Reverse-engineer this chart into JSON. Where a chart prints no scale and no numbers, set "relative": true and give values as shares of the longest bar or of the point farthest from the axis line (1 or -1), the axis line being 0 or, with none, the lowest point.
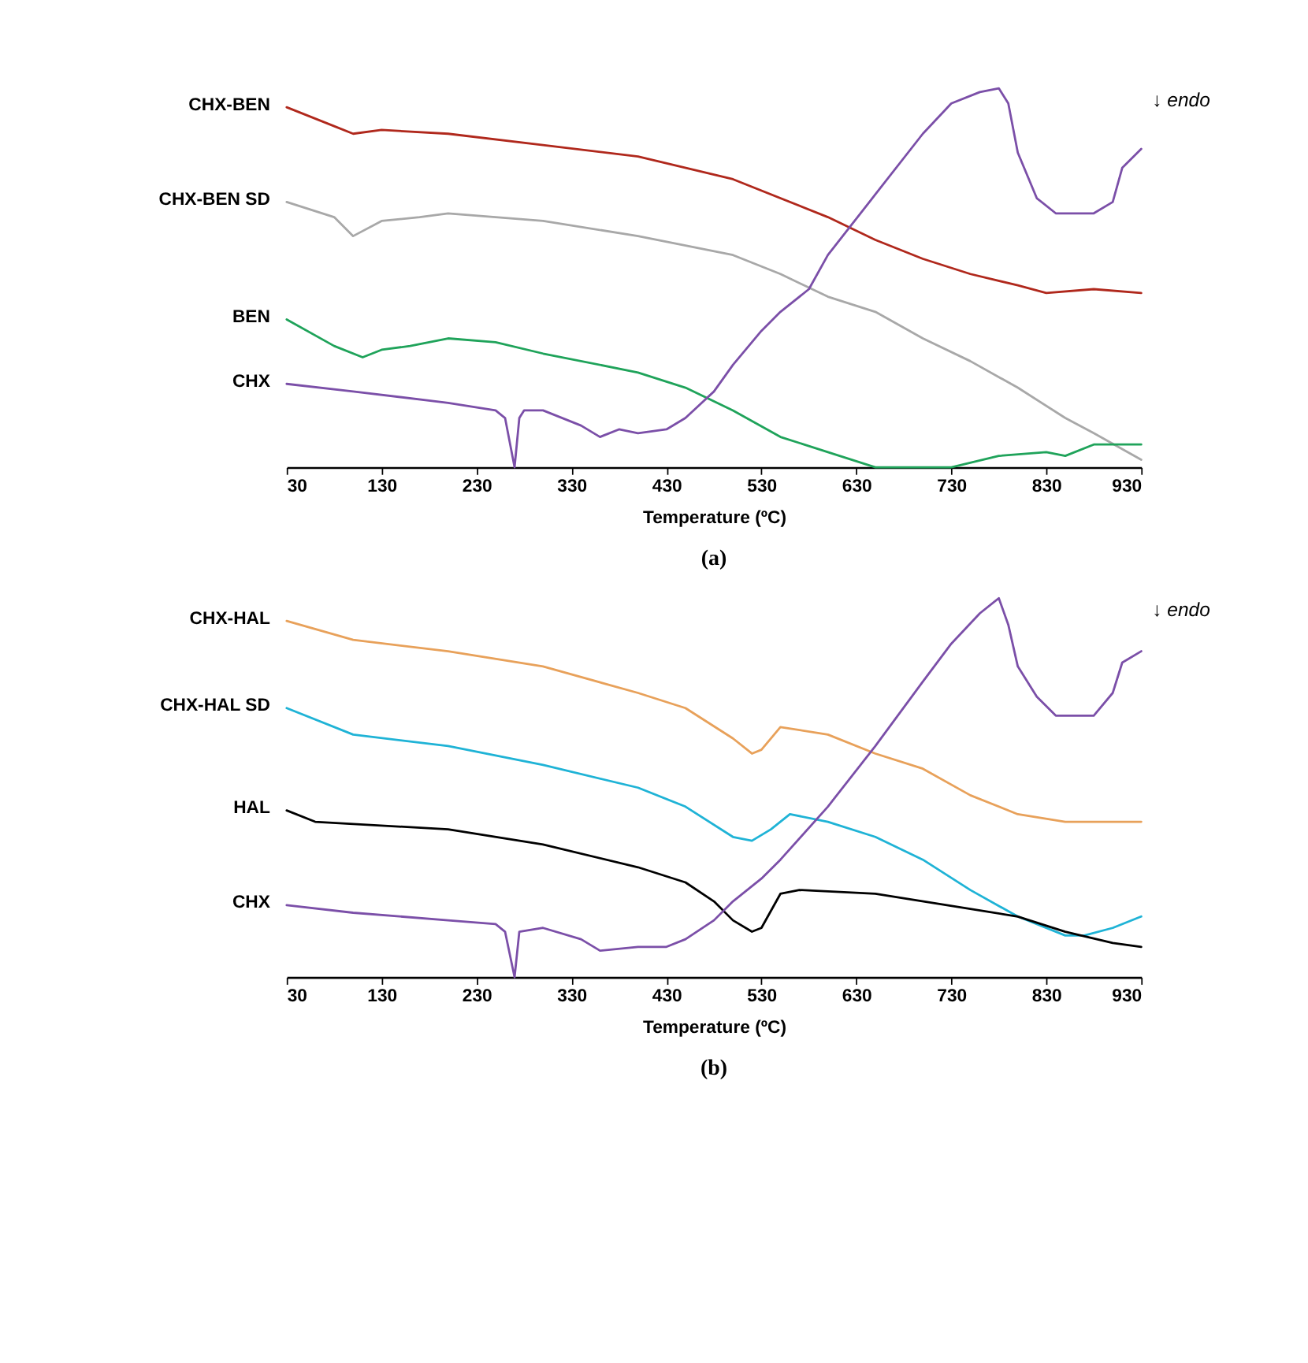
{
  "chart_data": [
    {
      "type": "line",
      "xlabel": "Temperature (ºC)",
      "xlim": [
        30,
        930
      ],
      "xticks": [
        30,
        130,
        230,
        330,
        430,
        530,
        630,
        730,
        830,
        930
      ],
      "relative": true,
      "tick_labels": "x",
      "grid": false,
      "legend": false,
      "line_style": "solid",
      "annotations": [
        "↓ endo",
        "(a)"
      ],
      "series": [
        {
          "name": "CHX-BEN",
          "color": "#b0281c",
          "x": [
            30,
            80,
            100,
            130,
            200,
            300,
            400,
            500,
            600,
            650,
            700,
            750,
            800,
            830,
            880,
            930
          ],
          "values": [
            0.95,
            0.9,
            0.88,
            0.89,
            0.88,
            0.85,
            0.82,
            0.76,
            0.66,
            0.6,
            0.55,
            0.51,
            0.48,
            0.46,
            0.47,
            0.46
          ]
        },
        {
          "name": "CHX-BEN SD",
          "color": "#a8a8a8",
          "x": [
            30,
            80,
            100,
            130,
            170,
            200,
            300,
            400,
            500,
            550,
            600,
            650,
            700,
            750,
            800,
            850,
            880,
            930
          ],
          "values": [
            0.7,
            0.66,
            0.61,
            0.65,
            0.66,
            0.67,
            0.65,
            0.61,
            0.56,
            0.51,
            0.45,
            0.41,
            0.34,
            0.28,
            0.21,
            0.13,
            0.09,
            0.02
          ]
        },
        {
          "name": "BEN",
          "color": "#1fa35a",
          "x": [
            30,
            80,
            110,
            130,
            160,
            200,
            250,
            300,
            400,
            450,
            500,
            550,
            600,
            650,
            700,
            730,
            780,
            830,
            850,
            880,
            930
          ],
          "values": [
            0.39,
            0.32,
            0.29,
            0.31,
            0.32,
            0.34,
            0.33,
            0.3,
            0.25,
            0.21,
            0.15,
            0.08,
            0.04,
            0.0,
            0.0,
            0.0,
            0.03,
            0.04,
            0.03,
            0.06,
            0.06
          ]
        },
        {
          "name": "CHX",
          "color": "#7b4fa8",
          "x": [
            30,
            100,
            200,
            250,
            260,
            270,
            275,
            280,
            300,
            340,
            360,
            380,
            400,
            430,
            450,
            480,
            500,
            530,
            550,
            580,
            600,
            650,
            700,
            730,
            760,
            780,
            790,
            800,
            820,
            840,
            860,
            880,
            900,
            910,
            930
          ],
          "values": [
            0.22,
            0.2,
            0.17,
            0.15,
            0.13,
            0.0,
            0.13,
            0.15,
            0.15,
            0.11,
            0.08,
            0.1,
            0.09,
            0.1,
            0.13,
            0.2,
            0.27,
            0.36,
            0.41,
            0.47,
            0.56,
            0.72,
            0.88,
            0.96,
            0.99,
            1.0,
            0.96,
            0.83,
            0.71,
            0.67,
            0.67,
            0.67,
            0.7,
            0.79,
            0.84
          ]
        }
      ]
    },
    {
      "type": "line",
      "xlabel": "Temperature (ºC)",
      "xlim": [
        30,
        930
      ],
      "xticks": [
        30,
        130,
        230,
        330,
        430,
        530,
        630,
        730,
        830,
        930
      ],
      "relative": true,
      "tick_labels": "x",
      "grid": false,
      "legend": false,
      "line_style": "solid",
      "annotations": [
        "↓ endo",
        "(b)"
      ],
      "series": [
        {
          "name": "CHX-HAL",
          "color": "#e8a15a",
          "x": [
            30,
            100,
            200,
            300,
            400,
            450,
            500,
            520,
            530,
            550,
            600,
            650,
            700,
            750,
            800,
            850,
            930
          ],
          "values": [
            0.94,
            0.89,
            0.86,
            0.82,
            0.75,
            0.71,
            0.63,
            0.59,
            0.6,
            0.66,
            0.64,
            0.59,
            0.55,
            0.48,
            0.43,
            0.41,
            0.41
          ]
        },
        {
          "name": "CHX-HAL SD",
          "color": "#1fb3d6",
          "x": [
            30,
            100,
            200,
            300,
            400,
            450,
            500,
            520,
            540,
            560,
            600,
            650,
            700,
            750,
            800,
            850,
            870,
            900,
            930
          ],
          "values": [
            0.71,
            0.64,
            0.61,
            0.56,
            0.5,
            0.45,
            0.37,
            0.36,
            0.39,
            0.43,
            0.41,
            0.37,
            0.31,
            0.23,
            0.16,
            0.11,
            0.11,
            0.13,
            0.16
          ]
        },
        {
          "name": "HAL",
          "color": "#000000",
          "x": [
            30,
            60,
            200,
            300,
            400,
            450,
            480,
            500,
            520,
            530,
            550,
            570,
            650,
            750,
            800,
            850,
            900,
            930
          ],
          "values": [
            0.44,
            0.41,
            0.39,
            0.35,
            0.29,
            0.25,
            0.2,
            0.15,
            0.12,
            0.13,
            0.22,
            0.23,
            0.22,
            0.18,
            0.16,
            0.12,
            0.09,
            0.08
          ]
        },
        {
          "name": "CHX",
          "color": "#7b4fa8",
          "x": [
            30,
            100,
            200,
            250,
            260,
            270,
            275,
            300,
            340,
            360,
            400,
            430,
            450,
            480,
            500,
            530,
            550,
            600,
            650,
            700,
            730,
            760,
            780,
            790,
            800,
            820,
            840,
            860,
            880,
            900,
            910,
            930
          ],
          "values": [
            0.19,
            0.17,
            0.15,
            0.14,
            0.12,
            0.0,
            0.12,
            0.13,
            0.1,
            0.07,
            0.08,
            0.08,
            0.1,
            0.15,
            0.2,
            0.26,
            0.31,
            0.45,
            0.61,
            0.78,
            0.88,
            0.96,
            1.0,
            0.93,
            0.82,
            0.74,
            0.69,
            0.69,
            0.69,
            0.75,
            0.83,
            0.86
          ]
        }
      ]
    }
  ]
}
